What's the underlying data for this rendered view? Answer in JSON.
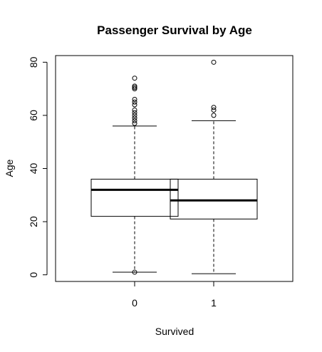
{
  "chart_data": {
    "type": "box",
    "title": "Passenger Survival by Age",
    "xlabel": "Survived",
    "ylabel": "Age",
    "categories": [
      "0",
      "1"
    ],
    "ylim": [
      -2.5,
      82.5
    ],
    "yticks": [
      0,
      20,
      40,
      60,
      80
    ],
    "grid": false,
    "boxes": [
      {
        "category": "0",
        "whisker_low": 1,
        "q1": 22,
        "median": 32,
        "q3": 36,
        "whisker_high": 56,
        "outliers": [
          1,
          57,
          58,
          59,
          60,
          61,
          62,
          64,
          65,
          66,
          70,
          70.5,
          71,
          74
        ]
      },
      {
        "category": "1",
        "whisker_low": 0.4,
        "q1": 21,
        "median": 28,
        "q3": 36,
        "whisker_high": 58,
        "outliers": [
          60,
          62,
          63,
          80
        ]
      }
    ]
  }
}
